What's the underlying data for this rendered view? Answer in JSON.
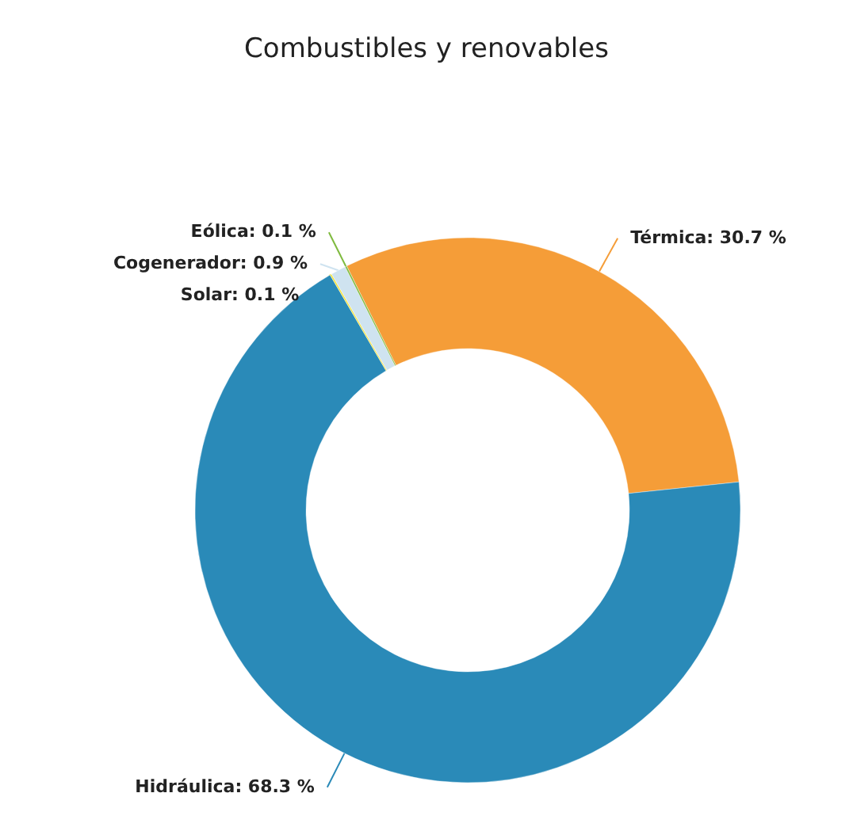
{
  "chart_data": {
    "type": "donut",
    "title": "Combustibles y renovables",
    "categories": [
      "Térmica",
      "Hidráulica",
      "Solar",
      "Cogenerador",
      "Eólica"
    ],
    "values": [
      30.7,
      68.3,
      0.1,
      0.9,
      0.1
    ],
    "value_labels": [
      "30.7 %",
      "68.3 %",
      "0.1 %",
      "0.9 %",
      "0.1 %"
    ],
    "colors": [
      "#f59d38",
      "#2a8ab8",
      "#f2e33a",
      "#cfe3f0",
      "#7fba3f"
    ]
  }
}
